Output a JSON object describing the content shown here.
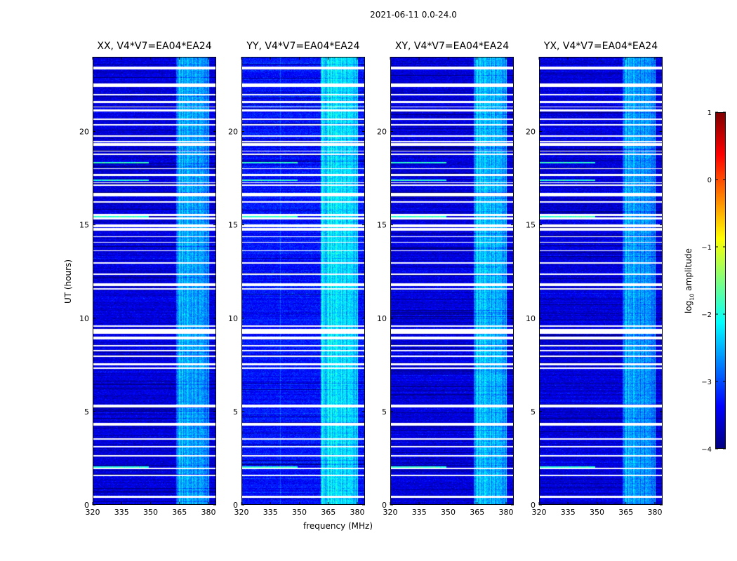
{
  "figure_title": "2021-06-11 0.0-24.0",
  "colormap": "jet",
  "colors": {
    "background": "#ffffff",
    "flagged": "#ffffff",
    "axis": "#000000",
    "jet_low": "#00007f",
    "jet_high": "#7f0000"
  },
  "chart_data": {
    "type": "heatmap",
    "title": "2021-06-11 0.0-24.0",
    "xlabel": "frequency (MHz)",
    "ylabel": "UT (hours)",
    "xlim": [
      320,
      384
    ],
    "ylim": [
      0,
      24
    ],
    "xticks": [
      320,
      335,
      350,
      365,
      380
    ],
    "yticks": [
      0,
      5,
      10,
      15,
      20
    ],
    "colorbar": {
      "label": "log10 amplitude",
      "label_base": "log",
      "label_sub": "10",
      "label_rest": " amplitude",
      "range": [
        -4,
        1
      ],
      "ticks": [
        -4,
        -3,
        -2,
        -1,
        0,
        1
      ],
      "tick_labels": [
        "−4",
        "−3",
        "−2",
        "−1",
        "0",
        "1"
      ]
    },
    "panels": [
      {
        "title": "XX, V4*V7=EA04*EA24",
        "polarization": "XX",
        "baseline_base": -3.55,
        "rfi_band_mhz": [
          363,
          380
        ],
        "rfi_level": -2.6
      },
      {
        "title": "YY, V4*V7=EA04*EA24",
        "polarization": "YY",
        "baseline_base": -3.3,
        "rfi_band_mhz": [
          361,
          380
        ],
        "rfi_level": -2.3
      },
      {
        "title": "XY, V4*V7=EA04*EA24",
        "polarization": "XY",
        "baseline_base": -3.55,
        "rfi_band_mhz": [
          363,
          380
        ],
        "rfi_level": -2.5
      },
      {
        "title": "YX, V4*V7=EA04*EA24",
        "polarization": "YX",
        "baseline_base": -3.55,
        "rfi_band_mhz": [
          363,
          380
        ],
        "rfi_level": -2.65
      }
    ],
    "flagged_time_ranges_hours": [
      [
        0.4,
        0.5
      ],
      [
        1.55,
        1.62
      ],
      [
        1.95,
        2.02
      ],
      [
        2.6,
        2.68
      ],
      [
        3.1,
        3.18
      ],
      [
        3.5,
        3.58
      ],
      [
        4.25,
        4.33
      ],
      [
        4.35,
        4.42
      ],
      [
        5.25,
        5.4
      ],
      [
        7.3,
        7.38
      ],
      [
        7.5,
        7.6
      ],
      [
        7.95,
        8.02
      ],
      [
        8.25,
        8.32
      ],
      [
        8.5,
        8.58
      ],
      [
        8.9,
        9.02
      ],
      [
        9.2,
        9.45
      ],
      [
        9.55,
        9.62
      ],
      [
        11.55,
        11.62
      ],
      [
        11.75,
        11.9
      ],
      [
        12.35,
        12.4
      ],
      [
        12.95,
        13.0
      ],
      [
        13.6,
        13.66
      ],
      [
        14.05,
        14.1
      ],
      [
        14.35,
        14.4
      ],
      [
        14.7,
        14.85
      ],
      [
        14.9,
        15.05
      ],
      [
        15.3,
        15.42
      ],
      [
        15.5,
        15.62
      ],
      [
        16.2,
        16.3
      ],
      [
        16.55,
        16.75
      ],
      [
        17.1,
        17.18
      ],
      [
        17.25,
        17.3
      ],
      [
        17.65,
        17.75
      ],
      [
        18.0,
        18.05
      ],
      [
        18.75,
        18.82
      ],
      [
        18.95,
        19.0
      ],
      [
        19.25,
        19.4
      ],
      [
        19.45,
        19.5
      ],
      [
        19.75,
        19.8
      ],
      [
        20.35,
        20.42
      ],
      [
        20.65,
        20.7
      ],
      [
        21.1,
        21.2
      ],
      [
        21.3,
        21.35
      ],
      [
        21.55,
        21.65
      ],
      [
        21.95,
        22.02
      ],
      [
        22.4,
        22.6
      ],
      [
        23.35,
        23.5
      ]
    ],
    "bright_time_hours": [
      2.05,
      15.45,
      17.4,
      18.35
    ]
  }
}
